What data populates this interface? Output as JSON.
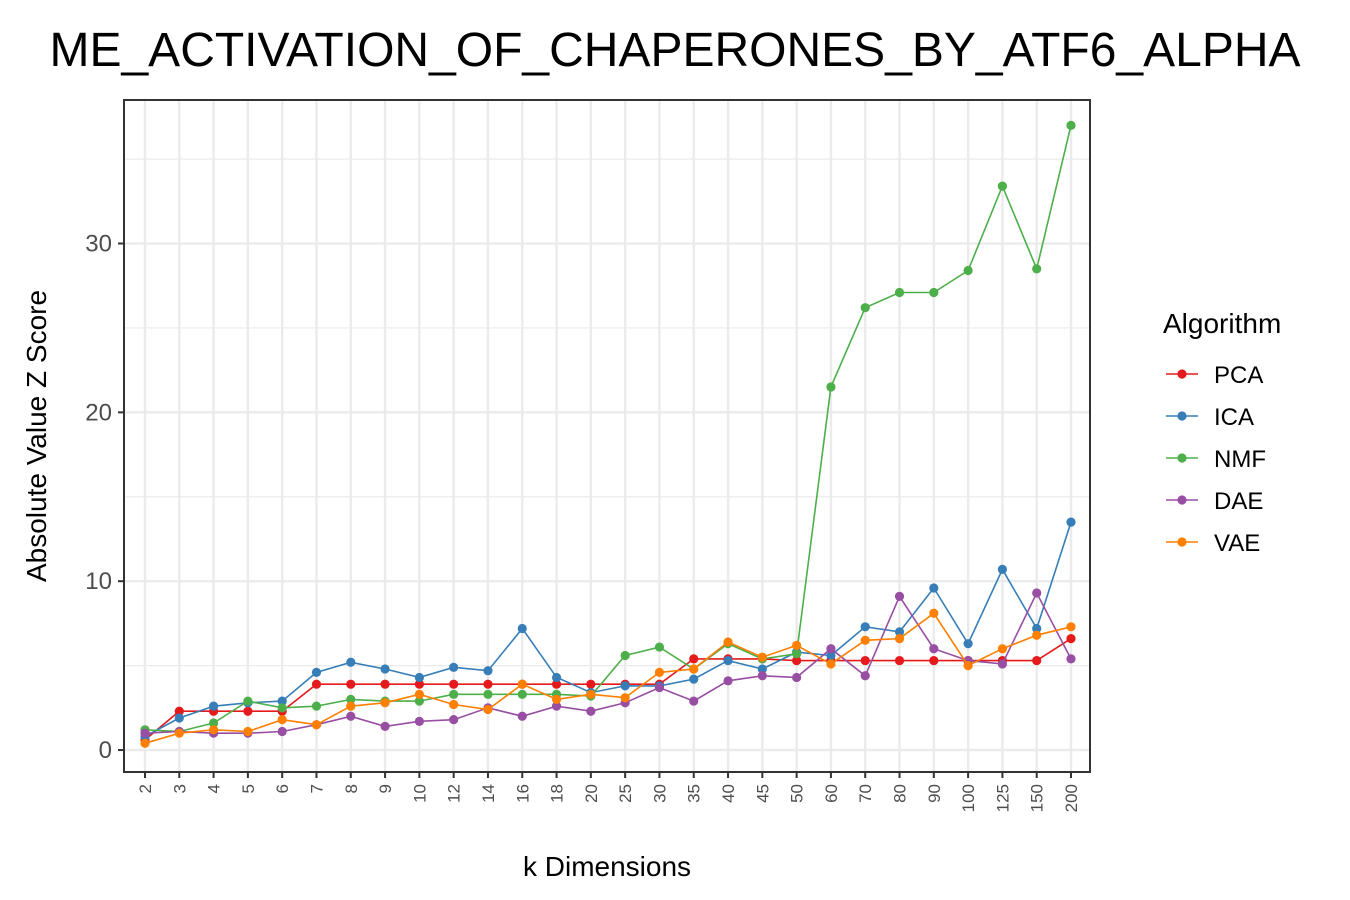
{
  "chart_data": {
    "type": "line",
    "title": "ME_ACTIVATION_OF_CHAPERONES_BY_ATF6_ALPHA",
    "xlabel": "k Dimensions",
    "ylabel": "Absolute Value Z Score",
    "categories": [
      "2",
      "3",
      "4",
      "5",
      "6",
      "7",
      "8",
      "9",
      "10",
      "12",
      "14",
      "16",
      "18",
      "20",
      "25",
      "30",
      "35",
      "40",
      "45",
      "50",
      "60",
      "70",
      "80",
      "90",
      "100",
      "125",
      "150",
      "200"
    ],
    "ylim": [
      -1.3,
      38.5
    ],
    "y_ticks": [
      0,
      10,
      20,
      30
    ],
    "grid": true,
    "legend_title": "Algorithm",
    "legend_position": "right",
    "series": [
      {
        "name": "PCA",
        "color": "#e41a1c",
        "values": [
          0.6,
          2.3,
          2.3,
          2.3,
          2.3,
          3.9,
          3.9,
          3.9,
          3.9,
          3.9,
          3.9,
          3.9,
          3.9,
          3.9,
          3.9,
          3.9,
          5.4,
          5.4,
          5.4,
          5.3,
          5.3,
          5.3,
          5.3,
          5.3,
          5.3,
          5.3,
          5.3,
          6.6
        ]
      },
      {
        "name": "ICA",
        "color": "#377eb8",
        "values": [
          0.8,
          1.9,
          2.6,
          2.8,
          2.9,
          4.6,
          5.2,
          4.8,
          4.3,
          4.9,
          4.7,
          7.2,
          4.3,
          3.4,
          3.8,
          3.8,
          4.2,
          5.3,
          4.8,
          5.8,
          5.6,
          7.3,
          7.0,
          9.6,
          6.3,
          10.7,
          7.2,
          13.5
        ]
      },
      {
        "name": "NMF",
        "color": "#4daf4a",
        "values": [
          1.2,
          1.1,
          1.6,
          2.9,
          2.5,
          2.6,
          3.0,
          2.9,
          2.9,
          3.3,
          3.3,
          3.3,
          3.3,
          3.2,
          5.6,
          6.1,
          4.8,
          6.3,
          5.4,
          5.7,
          21.5,
          26.2,
          27.1,
          27.1,
          28.4,
          33.4,
          28.5,
          37.0
        ]
      },
      {
        "name": "DAE",
        "color": "#984ea3",
        "values": [
          1.0,
          1.1,
          1.0,
          1.0,
          1.1,
          1.5,
          2.0,
          1.4,
          1.7,
          1.8,
          2.5,
          2.0,
          2.6,
          2.3,
          2.8,
          3.7,
          2.9,
          4.1,
          4.4,
          4.3,
          6.0,
          4.4,
          9.1,
          6.0,
          5.3,
          5.1,
          9.3,
          5.4
        ]
      },
      {
        "name": "VAE",
        "color": "#ff7f00",
        "values": [
          0.4,
          1.0,
          1.2,
          1.1,
          1.8,
          1.5,
          2.6,
          2.8,
          3.3,
          2.7,
          2.4,
          3.9,
          3.0,
          3.3,
          3.1,
          4.6,
          4.8,
          6.4,
          5.5,
          6.2,
          5.1,
          6.5,
          6.6,
          8.1,
          5.0,
          6.0,
          6.8,
          7.3
        ]
      }
    ]
  }
}
